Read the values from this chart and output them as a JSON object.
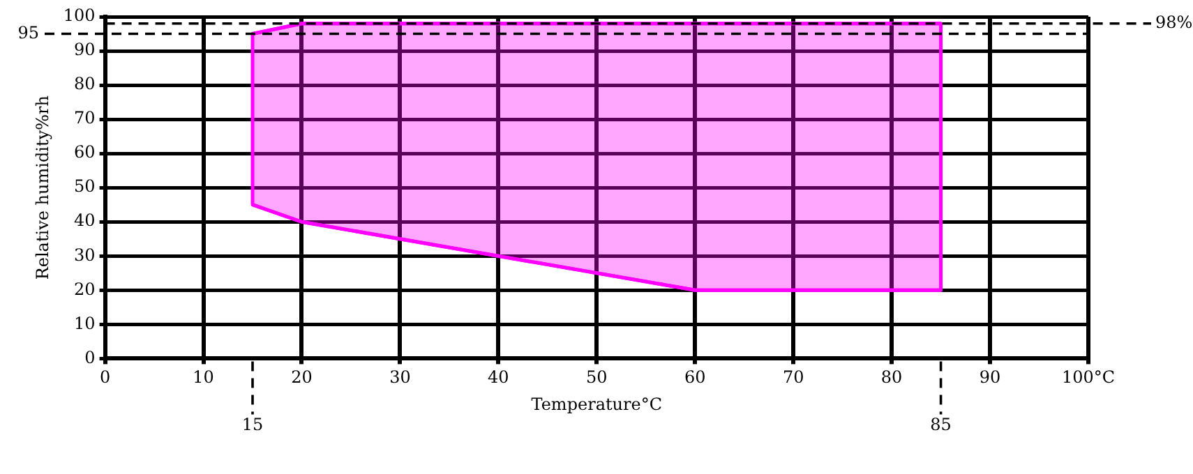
{
  "chart_data": {
    "type": "area",
    "xlabel": "Temperature°C",
    "ylabel": "Relative humidity%rh",
    "series": [
      {
        "type": "line",
        "color": "#ff00ff",
        "x": [
          15,
          20,
          60,
          85
        ],
        "values": [
          45,
          40,
          20,
          20
        ]
      },
      {
        "color": "#ff00ff",
        "x": [
          15,
          20,
          60,
          85
        ],
        "values": [
          95,
          98,
          98,
          98
        ]
      }
    ],
    "xlim": [
      0,
      100
    ],
    "xticks": [
      0,
      10,
      20,
      30,
      40,
      50,
      60,
      70,
      80,
      90,
      {
        "value": 100,
        "label": "100°C"
      }
    ],
    "ylim": [
      0,
      100
    ],
    "yticks": [
      0,
      10,
      20,
      30,
      40,
      50,
      60,
      70,
      80,
      90,
      100
    ],
    "grid": true,
    "legend": false,
    "ref_lines": [
      {
        "axis": "y",
        "value": 95,
        "label": "95",
        "line_style": "dashed"
      },
      {
        "axis": "y",
        "value": 98,
        "label": "98%",
        "line_style": "dashed"
      },
      {
        "axis": "x",
        "value": 15,
        "label": "15",
        "line_style": "dashed"
      },
      {
        "axis": "x",
        "value": 85,
        "label": "85",
        "line_style": "dashed"
      }
    ]
  }
}
